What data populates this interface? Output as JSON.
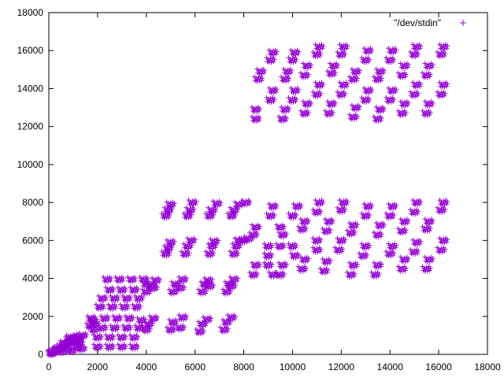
{
  "chart_data": {
    "type": "scatter",
    "legend": {
      "label": "\"/dev/stdin\"",
      "placement": "top-right"
    },
    "marker": {
      "symbol": "+",
      "color": "#9400d3"
    },
    "xlim": [
      0,
      18000
    ],
    "ylim": [
      0,
      18000
    ],
    "xticks": [
      0,
      2000,
      4000,
      6000,
      8000,
      10000,
      12000,
      14000,
      16000,
      18000
    ],
    "yticks": [
      0,
      2000,
      4000,
      6000,
      8000,
      10000,
      12000,
      14000,
      16000,
      18000
    ],
    "xtick_labels": [
      "0",
      "2000",
      "4000",
      "6000",
      "8000",
      "10000",
      "12000",
      "14000",
      "16000",
      "18000"
    ],
    "ytick_labels": [
      "0",
      "2000",
      "4000",
      "6000",
      "8000",
      "10000",
      "12000",
      "14000",
      "16000",
      "18000"
    ],
    "grid": false,
    "clusters": [
      {
        "x": 100,
        "y": 50
      },
      {
        "x": 200,
        "y": 120
      },
      {
        "x": 300,
        "y": 200
      },
      {
        "x": 400,
        "y": 300
      },
      {
        "x": 500,
        "y": 380
      },
      {
        "x": 600,
        "y": 450
      },
      {
        "x": 700,
        "y": 500
      },
      {
        "x": 800,
        "y": 600
      },
      {
        "x": 900,
        "y": 650
      },
      {
        "x": 1000,
        "y": 700
      },
      {
        "x": 1100,
        "y": 800
      },
      {
        "x": 1200,
        "y": 900
      },
      {
        "x": 1300,
        "y": 950
      },
      {
        "x": 1400,
        "y": 1000
      },
      {
        "x": 150,
        "y": 100
      },
      {
        "x": 350,
        "y": 250
      },
      {
        "x": 550,
        "y": 150
      },
      {
        "x": 750,
        "y": 300
      },
      {
        "x": 950,
        "y": 200
      },
      {
        "x": 1150,
        "y": 400
      },
      {
        "x": 1350,
        "y": 300
      },
      {
        "x": 650,
        "y": 600
      },
      {
        "x": 850,
        "y": 800
      },
      {
        "x": 1050,
        "y": 850
      },
      {
        "x": 1250,
        "y": 600
      },
      {
        "x": 900,
        "y": 900
      },
      {
        "x": 1200,
        "y": 750
      },
      {
        "x": 1700,
        "y": 1500
      },
      {
        "x": 1800,
        "y": 1800
      },
      {
        "x": 1900,
        "y": 1600
      },
      {
        "x": 1750,
        "y": 1900
      },
      {
        "x": 1850,
        "y": 1300
      },
      {
        "x": 2000,
        "y": 400
      },
      {
        "x": 2500,
        "y": 400
      },
      {
        "x": 3000,
        "y": 400
      },
      {
        "x": 3500,
        "y": 400
      },
      {
        "x": 2000,
        "y": 900
      },
      {
        "x": 2500,
        "y": 900
      },
      {
        "x": 3000,
        "y": 900
      },
      {
        "x": 3500,
        "y": 900
      },
      {
        "x": 2200,
        "y": 1400
      },
      {
        "x": 2700,
        "y": 1400
      },
      {
        "x": 3200,
        "y": 1400
      },
      {
        "x": 3700,
        "y": 1400
      },
      {
        "x": 2300,
        "y": 1900
      },
      {
        "x": 2800,
        "y": 1900
      },
      {
        "x": 3300,
        "y": 1900
      },
      {
        "x": 3800,
        "y": 1800
      },
      {
        "x": 4300,
        "y": 1900
      },
      {
        "x": 2100,
        "y": 2500
      },
      {
        "x": 2600,
        "y": 2500
      },
      {
        "x": 3100,
        "y": 2500
      },
      {
        "x": 3600,
        "y": 2500
      },
      {
        "x": 2200,
        "y": 2950
      },
      {
        "x": 2700,
        "y": 2950
      },
      {
        "x": 3200,
        "y": 2950
      },
      {
        "x": 3700,
        "y": 2950
      },
      {
        "x": 2500,
        "y": 3400
      },
      {
        "x": 3000,
        "y": 3400
      },
      {
        "x": 3500,
        "y": 3400
      },
      {
        "x": 4000,
        "y": 3300
      },
      {
        "x": 4300,
        "y": 3500
      },
      {
        "x": 2400,
        "y": 3950
      },
      {
        "x": 2900,
        "y": 3950
      },
      {
        "x": 3400,
        "y": 3950
      },
      {
        "x": 3900,
        "y": 3950
      },
      {
        "x": 4400,
        "y": 3900
      },
      {
        "x": 4000,
        "y": 1300
      },
      {
        "x": 4100,
        "y": 1600
      },
      {
        "x": 4000,
        "y": 3700
      },
      {
        "x": 4200,
        "y": 3600
      },
      {
        "x": 5000,
        "y": 1300
      },
      {
        "x": 5100,
        "y": 1700
      },
      {
        "x": 5400,
        "y": 1400
      },
      {
        "x": 5500,
        "y": 1950
      },
      {
        "x": 6200,
        "y": 1200
      },
      {
        "x": 6300,
        "y": 1600
      },
      {
        "x": 6500,
        "y": 1850
      },
      {
        "x": 7200,
        "y": 1300
      },
      {
        "x": 7300,
        "y": 1700
      },
      {
        "x": 7500,
        "y": 1950
      },
      {
        "x": 5100,
        "y": 3300
      },
      {
        "x": 5200,
        "y": 3700
      },
      {
        "x": 5400,
        "y": 3500
      },
      {
        "x": 5500,
        "y": 3950
      },
      {
        "x": 6300,
        "y": 3300
      },
      {
        "x": 6400,
        "y": 3700
      },
      {
        "x": 6600,
        "y": 3600
      },
      {
        "x": 6550,
        "y": 3900
      },
      {
        "x": 7300,
        "y": 3300
      },
      {
        "x": 7400,
        "y": 3700
      },
      {
        "x": 7500,
        "y": 3600
      },
      {
        "x": 7600,
        "y": 3950
      },
      {
        "x": 4800,
        "y": 5300
      },
      {
        "x": 4900,
        "y": 5600
      },
      {
        "x": 5000,
        "y": 5900
      },
      {
        "x": 5600,
        "y": 5300
      },
      {
        "x": 5700,
        "y": 5700
      },
      {
        "x": 5850,
        "y": 6000
      },
      {
        "x": 6600,
        "y": 5300
      },
      {
        "x": 6700,
        "y": 5700
      },
      {
        "x": 6800,
        "y": 5950
      },
      {
        "x": 7600,
        "y": 5300
      },
      {
        "x": 7700,
        "y": 5700
      },
      {
        "x": 7800,
        "y": 6000
      },
      {
        "x": 4800,
        "y": 7300
      },
      {
        "x": 4900,
        "y": 7600
      },
      {
        "x": 5000,
        "y": 7900
      },
      {
        "x": 5700,
        "y": 7300
      },
      {
        "x": 5800,
        "y": 7600
      },
      {
        "x": 5900,
        "y": 8000
      },
      {
        "x": 6600,
        "y": 7300
      },
      {
        "x": 6700,
        "y": 7600
      },
      {
        "x": 6900,
        "y": 7950
      },
      {
        "x": 7500,
        "y": 7300
      },
      {
        "x": 7600,
        "y": 7600
      },
      {
        "x": 7800,
        "y": 7900
      },
      {
        "x": 8100,
        "y": 8000
      },
      {
        "x": 8000,
        "y": 6000
      },
      {
        "x": 8200,
        "y": 6100
      },
      {
        "x": 8400,
        "y": 6300
      },
      {
        "x": 8500,
        "y": 6700
      },
      {
        "x": 8400,
        "y": 4200
      },
      {
        "x": 8500,
        "y": 4700
      },
      {
        "x": 9000,
        "y": 4700
      },
      {
        "x": 9200,
        "y": 4200
      },
      {
        "x": 9500,
        "y": 4200
      },
      {
        "x": 9600,
        "y": 4700
      },
      {
        "x": 9000,
        "y": 5200
      },
      {
        "x": 9500,
        "y": 5700
      },
      {
        "x": 9000,
        "y": 5700
      },
      {
        "x": 9100,
        "y": 7300
      },
      {
        "x": 9200,
        "y": 7800
      },
      {
        "x": 9500,
        "y": 6700
      },
      {
        "x": 9600,
        "y": 6300
      },
      {
        "x": 10000,
        "y": 7300
      },
      {
        "x": 10200,
        "y": 7800
      },
      {
        "x": 10000,
        "y": 5700
      },
      {
        "x": 10100,
        "y": 5200
      },
      {
        "x": 10400,
        "y": 6600
      },
      {
        "x": 10500,
        "y": 7000
      },
      {
        "x": 10400,
        "y": 4500
      },
      {
        "x": 10500,
        "y": 5000
      },
      {
        "x": 11000,
        "y": 5500
      },
      {
        "x": 11000,
        "y": 6000
      },
      {
        "x": 11000,
        "y": 7500
      },
      {
        "x": 11100,
        "y": 8000
      },
      {
        "x": 11400,
        "y": 6500
      },
      {
        "x": 11500,
        "y": 7000
      },
      {
        "x": 11300,
        "y": 4400
      },
      {
        "x": 11400,
        "y": 4900
      },
      {
        "x": 11900,
        "y": 5500
      },
      {
        "x": 12000,
        "y": 6000
      },
      {
        "x": 12000,
        "y": 7600
      },
      {
        "x": 12100,
        "y": 8000
      },
      {
        "x": 12400,
        "y": 6400
      },
      {
        "x": 12500,
        "y": 6800
      },
      {
        "x": 12400,
        "y": 4200
      },
      {
        "x": 12500,
        "y": 4700
      },
      {
        "x": 12900,
        "y": 5200
      },
      {
        "x": 13000,
        "y": 5700
      },
      {
        "x": 13000,
        "y": 7300
      },
      {
        "x": 13100,
        "y": 7800
      },
      {
        "x": 13500,
        "y": 6300
      },
      {
        "x": 13600,
        "y": 6800
      },
      {
        "x": 13400,
        "y": 4200
      },
      {
        "x": 13500,
        "y": 4700
      },
      {
        "x": 14000,
        "y": 5300
      },
      {
        "x": 14100,
        "y": 5700
      },
      {
        "x": 14000,
        "y": 7300
      },
      {
        "x": 14100,
        "y": 7800
      },
      {
        "x": 14500,
        "y": 6500
      },
      {
        "x": 14600,
        "y": 7000
      },
      {
        "x": 14500,
        "y": 4500
      },
      {
        "x": 14600,
        "y": 5000
      },
      {
        "x": 15000,
        "y": 5400
      },
      {
        "x": 15100,
        "y": 5900
      },
      {
        "x": 15000,
        "y": 7500
      },
      {
        "x": 15100,
        "y": 8000
      },
      {
        "x": 15500,
        "y": 6600
      },
      {
        "x": 15600,
        "y": 7000
      },
      {
        "x": 15500,
        "y": 4500
      },
      {
        "x": 15600,
        "y": 5000
      },
      {
        "x": 16100,
        "y": 5500
      },
      {
        "x": 16200,
        "y": 6000
      },
      {
        "x": 16100,
        "y": 7600
      },
      {
        "x": 16200,
        "y": 8000
      },
      {
        "x": 8500,
        "y": 12400
      },
      {
        "x": 8500,
        "y": 12900
      },
      {
        "x": 8600,
        "y": 14500
      },
      {
        "x": 8700,
        "y": 14900
      },
      {
        "x": 9100,
        "y": 13400
      },
      {
        "x": 9200,
        "y": 13900
      },
      {
        "x": 9100,
        "y": 15500
      },
      {
        "x": 9200,
        "y": 15900
      },
      {
        "x": 9600,
        "y": 12400
      },
      {
        "x": 9700,
        "y": 12900
      },
      {
        "x": 9700,
        "y": 14500
      },
      {
        "x": 9800,
        "y": 14900
      },
      {
        "x": 10000,
        "y": 13400
      },
      {
        "x": 10100,
        "y": 13900
      },
      {
        "x": 10000,
        "y": 15500
      },
      {
        "x": 10100,
        "y": 15900
      },
      {
        "x": 10500,
        "y": 12700
      },
      {
        "x": 10600,
        "y": 13200
      },
      {
        "x": 10500,
        "y": 14700
      },
      {
        "x": 10600,
        "y": 15200
      },
      {
        "x": 11000,
        "y": 13700
      },
      {
        "x": 11100,
        "y": 14200
      },
      {
        "x": 11000,
        "y": 15800
      },
      {
        "x": 11100,
        "y": 16200
      },
      {
        "x": 11500,
        "y": 12700
      },
      {
        "x": 11600,
        "y": 13200
      },
      {
        "x": 11600,
        "y": 14800
      },
      {
        "x": 11700,
        "y": 15200
      },
      {
        "x": 12000,
        "y": 13700
      },
      {
        "x": 12100,
        "y": 14200
      },
      {
        "x": 12000,
        "y": 15800
      },
      {
        "x": 12100,
        "y": 16200
      },
      {
        "x": 12500,
        "y": 12500
      },
      {
        "x": 12600,
        "y": 13000
      },
      {
        "x": 12500,
        "y": 14500
      },
      {
        "x": 12600,
        "y": 14900
      },
      {
        "x": 13000,
        "y": 13400
      },
      {
        "x": 13100,
        "y": 13900
      },
      {
        "x": 13000,
        "y": 15500
      },
      {
        "x": 13100,
        "y": 16000
      },
      {
        "x": 13500,
        "y": 12400
      },
      {
        "x": 13600,
        "y": 12900
      },
      {
        "x": 13500,
        "y": 14500
      },
      {
        "x": 13600,
        "y": 14900
      },
      {
        "x": 14000,
        "y": 13400
      },
      {
        "x": 14100,
        "y": 13900
      },
      {
        "x": 14000,
        "y": 15500
      },
      {
        "x": 14100,
        "y": 16000
      },
      {
        "x": 14500,
        "y": 12700
      },
      {
        "x": 14600,
        "y": 13200
      },
      {
        "x": 14500,
        "y": 14700
      },
      {
        "x": 14600,
        "y": 15200
      },
      {
        "x": 15000,
        "y": 13700
      },
      {
        "x": 15100,
        "y": 14200
      },
      {
        "x": 15000,
        "y": 15800
      },
      {
        "x": 15100,
        "y": 16200
      },
      {
        "x": 15500,
        "y": 12700
      },
      {
        "x": 15600,
        "y": 13200
      },
      {
        "x": 15500,
        "y": 14700
      },
      {
        "x": 15600,
        "y": 15200
      },
      {
        "x": 16100,
        "y": 13700
      },
      {
        "x": 16200,
        "y": 14200
      },
      {
        "x": 16100,
        "y": 15800
      },
      {
        "x": 16200,
        "y": 16200
      }
    ]
  }
}
